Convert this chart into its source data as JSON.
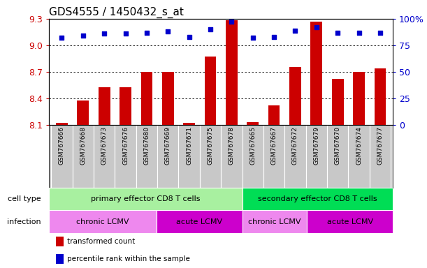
{
  "title": "GDS4555 / 1450432_s_at",
  "samples": [
    "GSM767666",
    "GSM767668",
    "GSM767673",
    "GSM767676",
    "GSM767680",
    "GSM767669",
    "GSM767671",
    "GSM767675",
    "GSM767678",
    "GSM767665",
    "GSM767667",
    "GSM767672",
    "GSM767679",
    "GSM767670",
    "GSM767674",
    "GSM767677"
  ],
  "red_values": [
    8.12,
    8.37,
    8.52,
    8.52,
    8.7,
    8.7,
    8.12,
    8.87,
    9.28,
    8.13,
    8.32,
    8.75,
    9.27,
    8.62,
    8.7,
    8.74
  ],
  "blue_values": [
    82,
    84,
    86,
    86,
    87,
    88,
    83,
    90,
    97,
    82,
    83,
    89,
    92,
    87,
    87,
    87
  ],
  "ylim_left": [
    8.1,
    9.3
  ],
  "ylim_right": [
    0,
    100
  ],
  "yticks_left": [
    8.1,
    8.4,
    8.7,
    9.0,
    9.3
  ],
  "yticks_right": [
    0,
    25,
    50,
    75,
    100
  ],
  "ytick_labels_right": [
    "0",
    "25",
    "50",
    "75",
    "100%"
  ],
  "grid_lines": [
    9.0,
    8.7,
    8.4
  ],
  "bar_color": "#cc0000",
  "dot_color": "#0000cc",
  "background_color": "#ffffff",
  "sample_box_color": "#c8c8c8",
  "cell_type_groups": [
    {
      "label": "primary effector CD8 T cells",
      "start": 0,
      "end": 9,
      "color": "#a8f0a0"
    },
    {
      "label": "secondary effector CD8 T cells",
      "start": 9,
      "end": 16,
      "color": "#00dd55"
    }
  ],
  "infection_groups": [
    {
      "label": "chronic LCMV",
      "start": 0,
      "end": 5,
      "color": "#ee88ee"
    },
    {
      "label": "acute LCMV",
      "start": 5,
      "end": 9,
      "color": "#cc00cc"
    },
    {
      "label": "chronic LCMV",
      "start": 9,
      "end": 12,
      "color": "#ee88ee"
    },
    {
      "label": "acute LCMV",
      "start": 12,
      "end": 16,
      "color": "#cc00cc"
    }
  ],
  "legend_items": [
    {
      "color": "#cc0000",
      "label": "transformed count"
    },
    {
      "color": "#0000cc",
      "label": "percentile rank within the sample"
    }
  ],
  "row_labels": [
    "cell type",
    "infection"
  ],
  "tick_label_color_left": "#cc0000",
  "tick_label_color_right": "#0000cc",
  "title_fontsize": 11,
  "tick_fontsize": 9,
  "sample_fontsize": 6.5,
  "annotation_fontsize": 8
}
